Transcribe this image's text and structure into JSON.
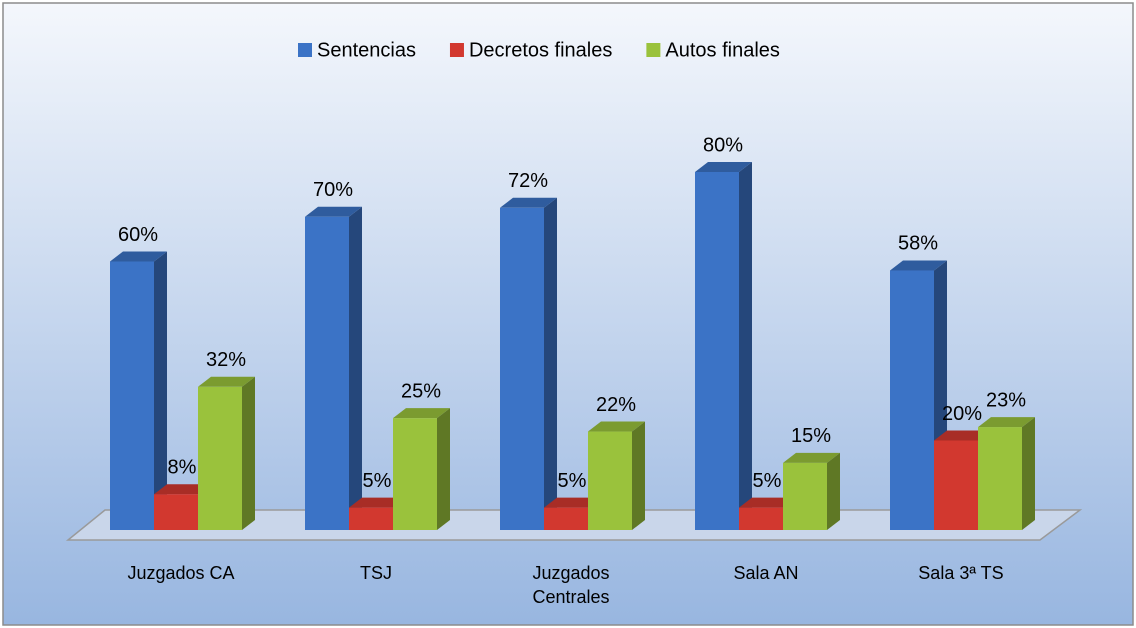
{
  "chart_data": {
    "type": "bar3d",
    "categories": [
      "Juzgados CA",
      "TSJ",
      "Juzgados Centrales",
      "Sala AN",
      "Sala 3ª TS"
    ],
    "series": [
      {
        "name": "Sentencias",
        "color": "#3b73c6",
        "values": [
          60,
          70,
          72,
          80,
          58
        ],
        "value_labels": [
          "60%",
          "70%",
          "72%",
          "80%",
          "58%"
        ]
      },
      {
        "name": "Decretos finales",
        "color": "#d2382f",
        "values": [
          8,
          5,
          5,
          5,
          20
        ],
        "value_labels": [
          "8%",
          "5%",
          "5%",
          "5%",
          "20%"
        ]
      },
      {
        "name": "Autos finales",
        "color": "#9ac23c",
        "values": [
          32,
          25,
          22,
          15,
          23
        ],
        "value_labels": [
          "32%",
          "25%",
          "22%",
          "15%",
          "23%"
        ]
      }
    ],
    "legend": "top"
  }
}
